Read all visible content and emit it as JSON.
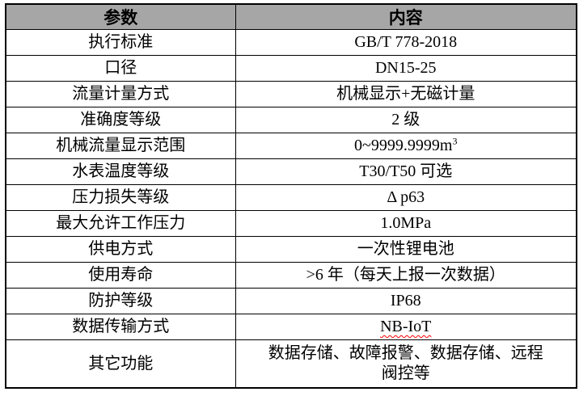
{
  "table": {
    "title_semantic": "water-meter-specification-table",
    "colors": {
      "header_bg": "#a6a6a6",
      "border": "#000000",
      "text": "#000000",
      "spellcheck_underline": "#ff0000"
    },
    "headers": {
      "param": "参数",
      "content": "内容"
    },
    "rows": [
      {
        "param": "执行标准",
        "value": "GB/T 778-2018"
      },
      {
        "param": "口径",
        "value": "DN15-25"
      },
      {
        "param": "流量计量方式",
        "value": "机械显示+无磁计量"
      },
      {
        "param": "准确度等级",
        "value": "2 级"
      },
      {
        "param": "机械流量显示范围",
        "value": "0~9999.9999m",
        "sup": "3"
      },
      {
        "param": "水表温度等级",
        "value": "T30/T50 可选"
      },
      {
        "param": "压力损失等级",
        "value": "Δ p63"
      },
      {
        "param": "最大允许工作压力",
        "value": "1.0MPa"
      },
      {
        "param": "供电方式",
        "value": "一次性锂电池"
      },
      {
        "param": "使用寿命",
        "value": ">6 年（每天上报一次数据）"
      },
      {
        "param": "防护等级",
        "value": "IP68"
      },
      {
        "param": "数据传输方式",
        "value": "NB-IoT",
        "spellcheck": true
      },
      {
        "param": "其它功能",
        "value_line1": "数据存储、故障报警、数据存储、远程",
        "value_line2": "阀控等"
      }
    ]
  }
}
